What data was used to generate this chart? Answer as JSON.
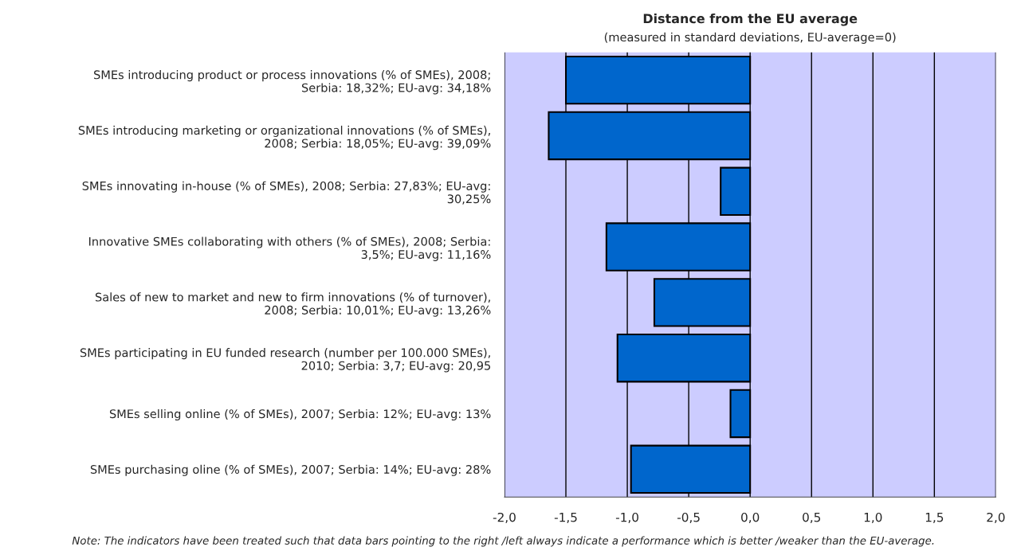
{
  "chart_data": {
    "type": "bar",
    "orientation": "horizontal",
    "title": "Distance from the EU average",
    "subtitle": "(measured in standard deviations, EU-average=0)",
    "categories": [
      "SMEs introducing product or process innovations (% of SMEs), 2008;\nSerbia: 18,32%; EU-avg: 34,18%",
      "SMEs introducing marketing or organizational innovations (% of SMEs),\n2008; Serbia: 18,05%; EU-avg: 39,09%",
      "SMEs innovating in-house (% of SMEs), 2008; Serbia: 27,83%; EU-avg:\n30,25%",
      "Innovative SMEs collaborating with others (% of SMEs), 2008; Serbia:\n3,5%; EU-avg: 11,16%",
      "Sales of new to market and new to firm innovations (% of turnover),\n2008; Serbia: 10,01%; EU-avg: 13,26%",
      "SMEs participating in EU funded research (number per 100.000 SMEs),\n2010; Serbia: 3,7; EU-avg: 20,95",
      "SMEs selling online (% of SMEs), 2007; Serbia: 12%; EU-avg: 13%",
      "SMEs purchasing oline (% of SMEs), 2007; Serbia: 14%; EU-avg: 28%"
    ],
    "values": [
      -1.5,
      -1.64,
      -0.24,
      -1.17,
      -0.78,
      -1.08,
      -0.16,
      -0.97
    ],
    "color": "#0066cc",
    "xlim": [
      -2,
      2
    ],
    "xticks": [
      {
        "value": -2,
        "label": "-2,0"
      },
      {
        "value": -1.5,
        "label": "-1,5"
      },
      {
        "value": -1,
        "label": "-1,0"
      },
      {
        "value": -0.5,
        "label": "-0,5"
      },
      {
        "value": 0,
        "label": "0,0"
      },
      {
        "value": 0.5,
        "label": "0,5"
      },
      {
        "value": 1,
        "label": "1,0"
      },
      {
        "value": 1.5,
        "label": "1,5"
      },
      {
        "value": 2,
        "label": "2,0"
      }
    ],
    "grid": "x",
    "legend": false,
    "annotations": [
      "Note: The indicators have been treated such that data bars pointing to the right /left always indicate a performance which is better /weaker than the EU-average."
    ]
  }
}
